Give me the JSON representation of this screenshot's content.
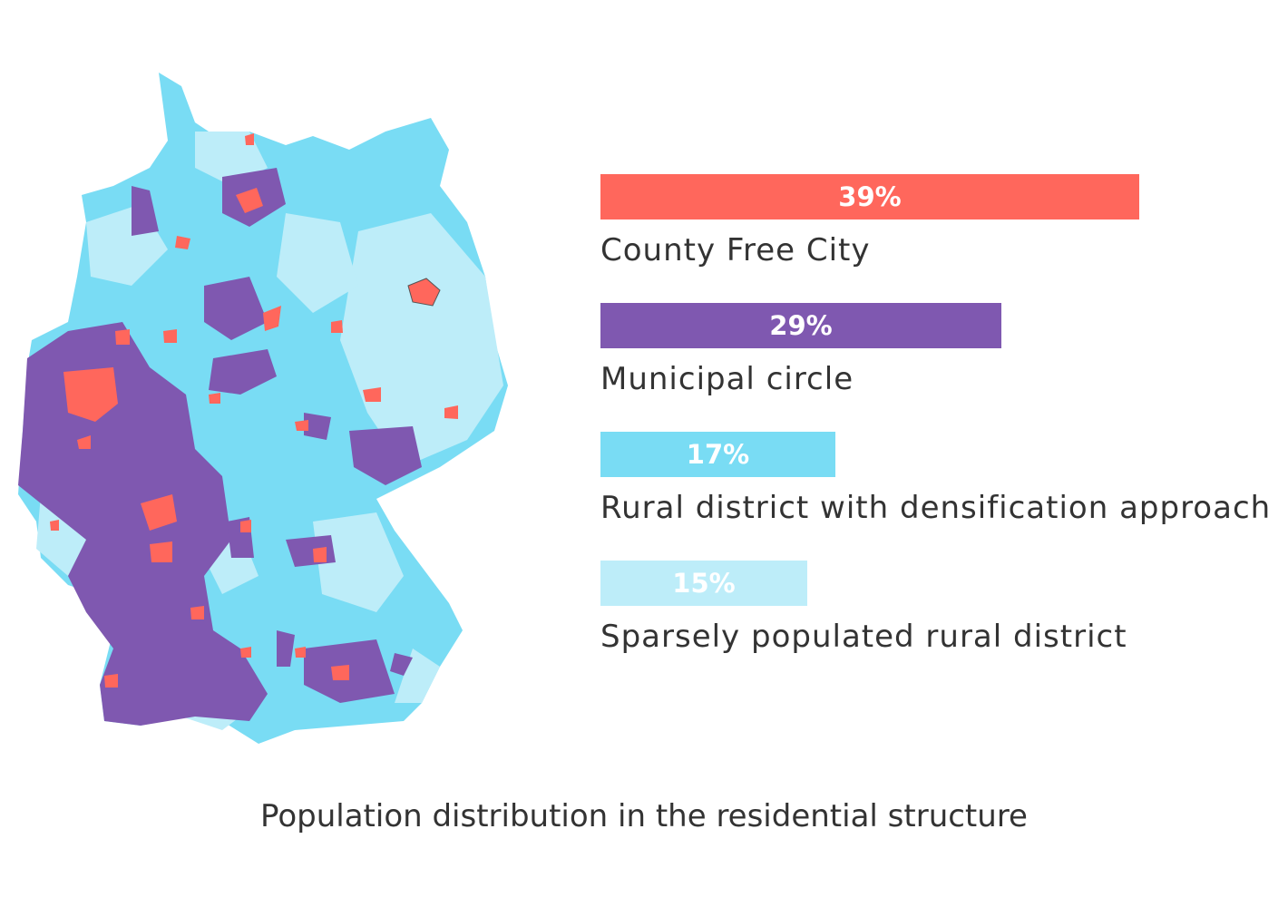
{
  "chart_data": {
    "type": "bar",
    "orientation": "horizontal",
    "title": "Population distribution in the residential structure",
    "categories": [
      "County Free City",
      "Municipal circle",
      "Rural district with densification approach",
      "Sparsely populated rural district"
    ],
    "values": [
      39,
      29,
      17,
      15
    ],
    "value_labels": [
      "39%",
      "29%",
      "17%",
      "15%"
    ],
    "unit": "%",
    "xlim": [
      0,
      100
    ],
    "colors": [
      "#ff675c",
      "#7f58b0",
      "#79dcf4",
      "#bdedf9"
    ],
    "grid": false,
    "legend": "none"
  },
  "map": {
    "region_colors": {
      "county_free_city": "#ff675c",
      "municipal_circle": "#7f58b0",
      "rural_densification": "#79dcf4",
      "sparse_rural": "#bdedf9"
    }
  }
}
